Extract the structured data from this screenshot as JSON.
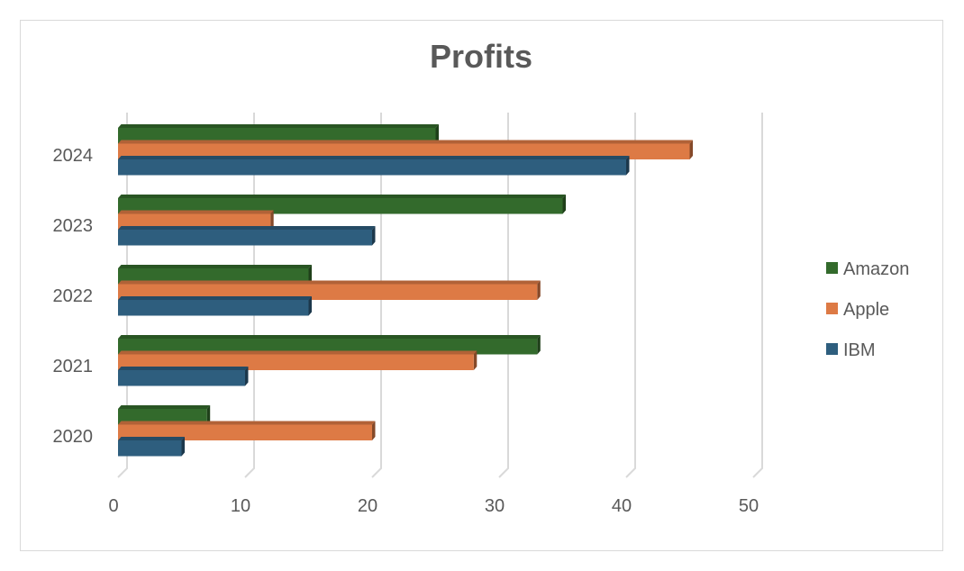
{
  "chart_data": {
    "type": "bar",
    "orientation": "horizontal",
    "title": "Profits",
    "xlabel": "",
    "ylabel": "",
    "categories": [
      "2020",
      "2021",
      "2022",
      "2023",
      "2024"
    ],
    "series": [
      {
        "name": "IBM",
        "values": [
          5,
          10,
          15,
          20,
          40
        ],
        "color": "#2E5E7E"
      },
      {
        "name": "Apple",
        "values": [
          20,
          28,
          33,
          12,
          45
        ],
        "color": "#DD7A45"
      },
      {
        "name": "Amazon",
        "values": [
          7,
          33,
          15,
          35,
          25
        ],
        "color": "#336A2C"
      }
    ],
    "xlim": [
      0,
      50
    ],
    "xticks": [
      "0",
      "10",
      "20",
      "30",
      "40",
      "50"
    ],
    "grid": true,
    "legend_position": "right",
    "legend_order": [
      "Amazon",
      "Apple",
      "IBM"
    ]
  }
}
